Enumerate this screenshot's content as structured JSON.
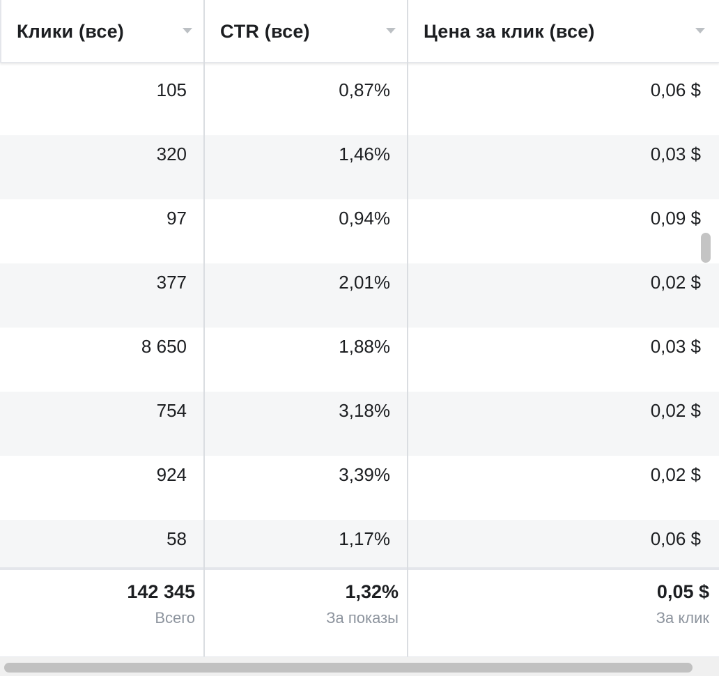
{
  "header": {
    "columns": [
      {
        "label": "Клики (все)"
      },
      {
        "label": "CTR (все)"
      },
      {
        "label": "Цена за клик (все)"
      }
    ]
  },
  "rows": [
    {
      "clicks": "105",
      "ctr": "0,87%",
      "cpc": "0,06 $"
    },
    {
      "clicks": "320",
      "ctr": "1,46%",
      "cpc": "0,03 $"
    },
    {
      "clicks": "97",
      "ctr": "0,94%",
      "cpc": "0,09 $"
    },
    {
      "clicks": "377",
      "ctr": "2,01%",
      "cpc": "0,02 $"
    },
    {
      "clicks": "8 650",
      "ctr": "1,88%",
      "cpc": "0,03 $"
    },
    {
      "clicks": "754",
      "ctr": "3,18%",
      "cpc": "0,02 $"
    },
    {
      "clicks": "924",
      "ctr": "3,39%",
      "cpc": "0,02 $"
    },
    {
      "clicks": "58",
      "ctr": "1,17%",
      "cpc": "0,06 $"
    }
  ],
  "footer": {
    "clicks": {
      "total": "142 345",
      "caption": "Всего"
    },
    "ctr": {
      "total": "1,32%",
      "caption": "За показы"
    },
    "cpc": {
      "total": "0,05 $",
      "caption": "За клик"
    }
  },
  "colors": {
    "row_alt": "#f5f6f7",
    "divider": "#dadde1",
    "caption": "#8d949e",
    "caret": "#bcc0c4"
  },
  "icons": [
    "sort-caret-icon"
  ]
}
